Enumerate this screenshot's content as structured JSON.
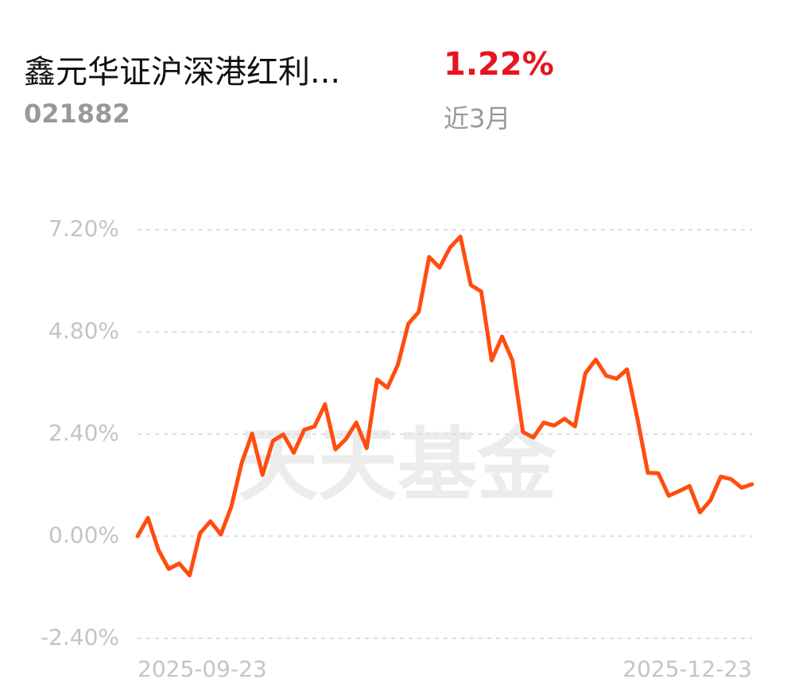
{
  "header": {
    "title": "鑫元华证沪深港红利...",
    "code": "021882",
    "return": "1.22%",
    "period": "近3月"
  },
  "chart_data": {
    "type": "line",
    "watermark": "天天基金",
    "categories": [
      "2025-09-23",
      null,
      null,
      null,
      null,
      null,
      null,
      null,
      null,
      null,
      null,
      null,
      null,
      null,
      null,
      null,
      null,
      null,
      null,
      null,
      null,
      null,
      null,
      null,
      null,
      null,
      null,
      null,
      null,
      null,
      null,
      null,
      null,
      null,
      null,
      null,
      null,
      null,
      null,
      null,
      null,
      null,
      null,
      null,
      null,
      null,
      null,
      null,
      null,
      null,
      null,
      null,
      null,
      null,
      null,
      null,
      null,
      null,
      null,
      "2025-12-23"
    ],
    "series": [
      {
        "color": "#ff4d0f",
        "values": [
          0,
          0.43,
          -0.32,
          -0.77,
          -0.64,
          -0.92,
          0.07,
          0.35,
          0.04,
          0.69,
          1.72,
          2.41,
          1.44,
          2.24,
          2.39,
          1.96,
          2.5,
          2.58,
          3.1,
          2.04,
          2.28,
          2.67,
          2.07,
          3.68,
          3.49,
          4.03,
          4.99,
          5.27,
          6.56,
          6.31,
          6.78,
          7.04,
          5.9,
          5.75,
          4.13,
          4.69,
          4.13,
          2.45,
          2.32,
          2.67,
          2.6,
          2.76,
          2.58,
          3.83,
          4.15,
          3.77,
          3.7,
          3.92,
          2.76,
          1.49,
          1.48,
          0.95,
          1.06,
          1.18,
          0.56,
          0.84,
          1.4,
          1.34,
          1.14,
          1.22
        ]
      }
    ],
    "ylim": [
      -2.4,
      7.2
    ],
    "yticks": [
      {
        "value": 7.2,
        "label": "7.20%"
      },
      {
        "value": 4.8,
        "label": "4.80%"
      },
      {
        "value": 2.4,
        "label": "2.40%"
      },
      {
        "value": 0,
        "label": "0.00%"
      },
      {
        "value": -2.4,
        "label": "-2.40%"
      }
    ],
    "grid": true
  }
}
